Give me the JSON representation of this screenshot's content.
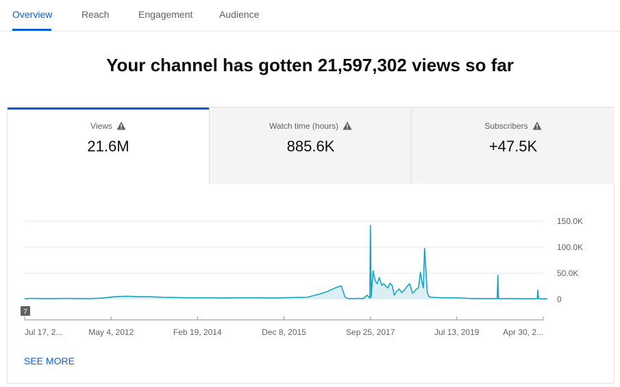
{
  "tabs": [
    {
      "label": "Overview",
      "active": true
    },
    {
      "label": "Reach",
      "active": false
    },
    {
      "label": "Engagement",
      "active": false
    },
    {
      "label": "Audience",
      "active": false
    }
  ],
  "headline": "Your channel has gotten 21,597,302 views so far",
  "metrics": [
    {
      "label": "Views",
      "value": "21.6M",
      "icon": "warning-icon",
      "selected": true
    },
    {
      "label": "Watch time (hours)",
      "value": "885.6K",
      "icon": "warning-icon",
      "selected": false
    },
    {
      "label": "Subscribers",
      "value": "+47.5K",
      "icon": "warning-icon",
      "selected": false
    }
  ],
  "chart_badge": "7",
  "see_more_label": "SEE MORE",
  "colors": {
    "accent": "#065fd4",
    "line": "#12a4c6",
    "fill": "#dbeef3",
    "grid": "#e6e6e6"
  },
  "chart_data": {
    "type": "area",
    "title": "",
    "xlabel": "",
    "ylabel": "",
    "ylim": [
      0,
      150000
    ],
    "y_ticks": [
      {
        "value": 150000,
        "label": "150.0K"
      },
      {
        "value": 100000,
        "label": "100.0K"
      },
      {
        "value": 50000,
        "label": "50.0K"
      },
      {
        "value": 0,
        "label": "0"
      }
    ],
    "x_ticks": [
      "Jul 17, 2...",
      "May 4, 2012",
      "Feb 19, 2014",
      "Dec 8, 2015",
      "Sep 25, 2017",
      "Jul 13, 2019",
      "Apr 30, 2..."
    ],
    "x_tick_dates": [
      "2010-07-17",
      "2012-05-04",
      "2014-02-19",
      "2015-12-08",
      "2017-09-25",
      "2019-07-13",
      "2021-04-30"
    ],
    "grid": true,
    "series": [
      {
        "x": [
          "2010-07-17",
          "2010-09-01",
          "2010-12-01",
          "2011-03-01",
          "2011-06-01",
          "2011-09-01",
          "2011-12-01",
          "2012-03-01",
          "2012-06-01",
          "2012-09-01",
          "2012-12-01",
          "2013-03-01",
          "2013-06-01",
          "2013-09-01",
          "2013-12-01",
          "2014-03-01",
          "2014-06-01",
          "2014-09-01",
          "2014-12-01",
          "2015-03-01",
          "2015-06-01",
          "2015-09-01",
          "2015-12-01",
          "2016-03-01",
          "2016-06-01",
          "2016-09-01",
          "2016-11-01",
          "2017-01-01",
          "2017-02-15",
          "2017-03-15",
          "2017-04-01",
          "2017-04-15",
          "2017-05-01",
          "2017-06-01",
          "2017-07-01",
          "2017-08-01",
          "2017-09-01",
          "2017-09-20",
          "2017-09-25",
          "2017-10-01",
          "2017-10-15",
          "2017-11-01",
          "2017-11-15",
          "2017-12-01",
          "2017-12-20",
          "2018-01-05",
          "2018-01-20",
          "2018-02-05",
          "2018-02-20",
          "2018-03-10",
          "2018-03-25",
          "2018-04-10",
          "2018-05-01",
          "2018-05-20",
          "2018-06-10",
          "2018-07-01",
          "2018-07-20",
          "2018-08-10",
          "2018-08-25",
          "2018-09-10",
          "2018-09-25",
          "2018-10-10",
          "2018-10-20",
          "2018-11-01",
          "2018-11-10",
          "2018-11-20",
          "2018-12-01",
          "2018-12-15",
          "2019-01-01",
          "2019-02-01",
          "2019-04-01",
          "2019-07-01",
          "2019-10-01",
          "2020-01-01",
          "2020-04-01",
          "2020-05-15",
          "2020-05-20",
          "2020-05-25",
          "2020-07-01",
          "2020-10-01",
          "2021-01-01",
          "2021-03-15",
          "2021-03-20",
          "2021-03-25",
          "2021-05-30"
        ],
        "y": [
          1000,
          2000,
          1500,
          1500,
          2000,
          1500,
          1500,
          2500,
          5000,
          6000,
          5000,
          5000,
          4000,
          3500,
          3000,
          3000,
          3000,
          2500,
          3000,
          3000,
          3000,
          2500,
          3000,
          3500,
          4000,
          10000,
          15000,
          22000,
          26000,
          5000,
          2000,
          1500,
          1500,
          1500,
          2000,
          1500,
          8000,
          2000,
          142000,
          4000,
          55000,
          35000,
          30000,
          42000,
          27000,
          30000,
          25000,
          22000,
          31000,
          26000,
          8000,
          15000,
          20000,
          13000,
          18000,
          25000,
          30000,
          12000,
          15000,
          20000,
          22000,
          52000,
          35000,
          22000,
          98000,
          60000,
          12000,
          5000,
          4000,
          3500,
          3000,
          3000,
          2000,
          1500,
          1500,
          1500,
          46000,
          1000,
          1500,
          1500,
          1000,
          1500,
          18000,
          1000,
          1000
        ]
      }
    ]
  }
}
